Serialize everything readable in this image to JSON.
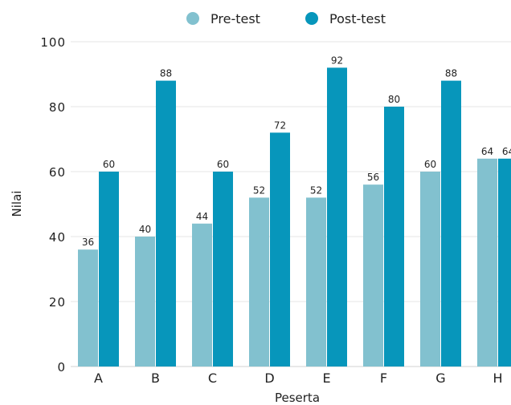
{
  "chart_data": {
    "type": "bar",
    "categories": [
      "A",
      "B",
      "C",
      "D",
      "E",
      "F",
      "G",
      "H"
    ],
    "series": [
      {
        "name": "Pre-test",
        "values": [
          36,
          40,
          44,
          52,
          52,
          56,
          60,
          64
        ]
      },
      {
        "name": "Post-test",
        "values": [
          60,
          88,
          60,
          72,
          92,
          80,
          88,
          64
        ]
      }
    ],
    "xlabel": "Peserta",
    "ylabel": "Nilai",
    "ylim": [
      0,
      100
    ],
    "yticks": [
      0,
      20,
      40,
      60,
      80,
      100
    ],
    "grid": true,
    "legend_position": "top-center",
    "colors": {
      "Pre-test": "#82c1cf",
      "Post-test": "#0796bb",
      "grid": "#e6e6e6"
    }
  }
}
